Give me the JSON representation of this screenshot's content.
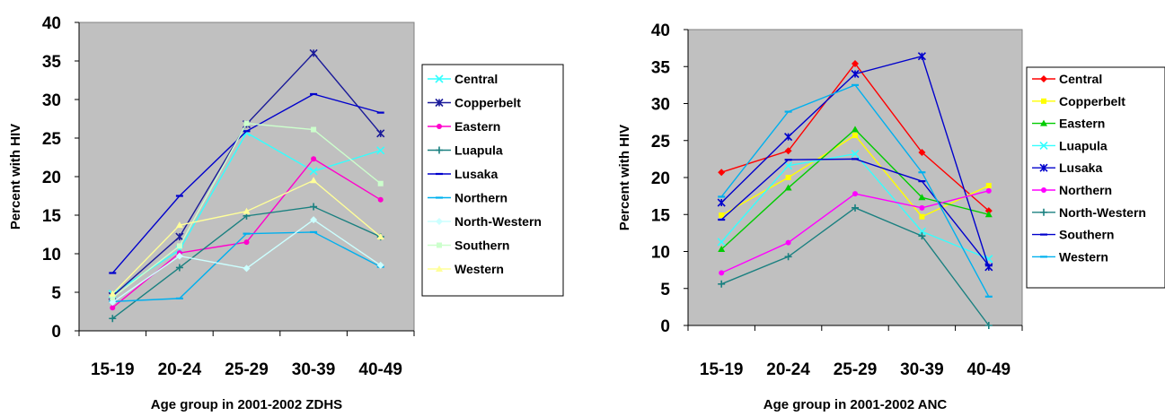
{
  "chart_data": [
    {
      "type": "line",
      "title": "",
      "xlabel": "Age group in 2001-2002 ZDHS",
      "ylabel": "Percent with HIV",
      "categories": [
        "15-19",
        "20-24",
        "25-29",
        "30-39",
        "40-49"
      ],
      "ylim": [
        0,
        40
      ],
      "yticks": [
        0,
        5,
        10,
        15,
        20,
        25,
        30,
        35,
        40
      ],
      "grid": false,
      "legend": "right",
      "plot_background": "#c0c0c0",
      "series": [
        {
          "name": "Central",
          "color": "#33ffff",
          "marker": "x",
          "values": [
            4.8,
            10.5,
            25.7,
            20.7,
            23.4
          ]
        },
        {
          "name": "Copperbelt",
          "color": "#1a1a99",
          "marker": "star",
          "values": [
            4.5,
            12.2,
            26.8,
            36.0,
            25.6
          ]
        },
        {
          "name": "Eastern",
          "color": "#ff00cc",
          "marker": "circle",
          "values": [
            3.0,
            10.1,
            11.5,
            22.3,
            17.0
          ]
        },
        {
          "name": "Luapula",
          "color": "#1a8080",
          "marker": "plus",
          "values": [
            1.6,
            8.2,
            14.9,
            16.1,
            12.2
          ]
        },
        {
          "name": "Lusaka",
          "color": "#0000cc",
          "marker": "dash",
          "values": [
            7.5,
            17.5,
            25.9,
            30.7,
            28.3
          ]
        },
        {
          "name": "Northern",
          "color": "#00b0ee",
          "marker": "dash",
          "values": [
            3.8,
            4.2,
            12.6,
            12.8,
            8.3
          ]
        },
        {
          "name": "North-Western",
          "color": "#ccffff",
          "marker": "diamond",
          "values": [
            3.7,
            9.7,
            8.1,
            14.4,
            8.5
          ]
        },
        {
          "name": "Southern",
          "color": "#ccffcc",
          "marker": "square",
          "values": [
            4.3,
            11.0,
            26.9,
            26.1,
            19.1
          ]
        },
        {
          "name": "Western",
          "color": "#ffff99",
          "marker": "triangle",
          "values": [
            4.8,
            13.7,
            15.5,
            19.5,
            12.2
          ]
        }
      ]
    },
    {
      "type": "line",
      "title": "",
      "xlabel": "Age group in 2001-2002 ANC",
      "ylabel": "Percent with HIV",
      "categories": [
        "15-19",
        "20-24",
        "25-29",
        "30-39",
        "40-49"
      ],
      "ylim": [
        0,
        40
      ],
      "yticks": [
        0,
        5,
        10,
        15,
        20,
        25,
        30,
        35,
        40
      ],
      "grid": false,
      "legend": "right",
      "plot_background": "#c0c0c0",
      "series": [
        {
          "name": "Central",
          "color": "#ff0000",
          "marker": "diamond",
          "values": [
            20.7,
            23.6,
            35.4,
            23.4,
            15.5
          ]
        },
        {
          "name": "Copperbelt",
          "color": "#ffff00",
          "marker": "square",
          "values": [
            14.9,
            20.0,
            25.7,
            14.7,
            18.9
          ]
        },
        {
          "name": "Eastern",
          "color": "#00cc00",
          "marker": "triangle",
          "values": [
            10.3,
            18.6,
            26.5,
            17.3,
            15.0
          ]
        },
        {
          "name": "Luapula",
          "color": "#33ffff",
          "marker": "x",
          "values": [
            11.3,
            21.6,
            23.2,
            12.7,
            9.0
          ]
        },
        {
          "name": "Lusaka",
          "color": "#0000cc",
          "marker": "star",
          "values": [
            16.6,
            25.5,
            34.0,
            36.4,
            7.9
          ]
        },
        {
          "name": "Northern",
          "color": "#ff00ff",
          "marker": "circle",
          "values": [
            7.1,
            11.2,
            17.8,
            15.9,
            18.2
          ]
        },
        {
          "name": "North-Western",
          "color": "#1a8080",
          "marker": "plus",
          "values": [
            5.6,
            9.3,
            15.9,
            12.1,
            0.0
          ]
        },
        {
          "name": "Southern",
          "color": "#0000cc",
          "marker": "dash",
          "values": [
            14.3,
            22.4,
            22.5,
            19.5,
            8.1
          ]
        },
        {
          "name": "Western",
          "color": "#00b0ee",
          "marker": "dash",
          "values": [
            17.4,
            28.9,
            32.5,
            20.7,
            3.9
          ]
        }
      ]
    }
  ]
}
